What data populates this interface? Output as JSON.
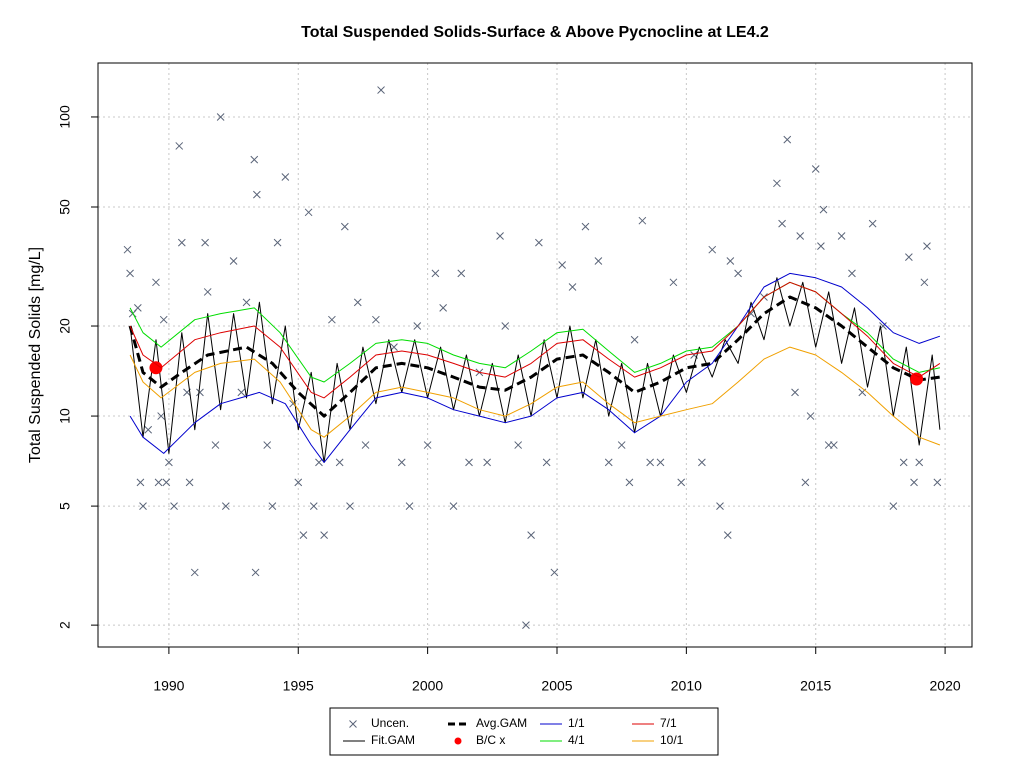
{
  "chart_data": {
    "type": "line",
    "title": "Total Suspended Solids-Surface & Above Pycnocline at LE4.2",
    "y_label": "Total Suspended Solids [mg/L]",
    "log_y": true,
    "grid": true,
    "xlim": [
      1987.26,
      2021.04
    ],
    "ylim": [
      1.69,
      151.5
    ],
    "xticks": [
      1990,
      1995,
      2000,
      2005,
      2010,
      2015,
      2020
    ],
    "yticks": [
      2,
      5,
      10,
      20,
      50,
      100
    ],
    "series": [
      {
        "name": "Uncen.",
        "color": "#5a6478",
        "style": "points",
        "x": [
          1988.4,
          1988.5,
          1988.6,
          1988.8,
          1988.9,
          1989.0,
          1989.2,
          1989.5,
          1989.6,
          1989.7,
          1989.8,
          1989.9,
          1990.0,
          1990.2,
          1990.4,
          1990.5,
          1990.7,
          1990.8,
          1991.0,
          1991.2,
          1991.4,
          1991.5,
          1991.8,
          1992.0,
          1992.2,
          1992.5,
          1992.8,
          1993.0,
          1993.3,
          1993.4,
          1993.35,
          1993.8,
          1994.0,
          1994.2,
          1994.5,
          1994.8,
          1995.0,
          1995.2,
          1995.4,
          1995.6,
          1995.8,
          1996.0,
          1996.3,
          1996.6,
          1996.8,
          1997.0,
          1997.3,
          1997.6,
          1998.0,
          1998.2,
          1998.7,
          1999.0,
          1999.3,
          1999.6,
          2000.0,
          2000.3,
          2000.6,
          2001.0,
          2001.3,
          2001.6,
          2002.0,
          2002.3,
          2002.8,
          2003.0,
          2003.5,
          2003.8,
          2004.0,
          2004.3,
          2004.6,
          2004.9,
          2005.2,
          2005.6,
          2006.1,
          2006.6,
          2007.0,
          2007.5,
          2007.8,
          2008.0,
          2008.3,
          2008.6,
          2009.0,
          2009.5,
          2009.8,
          2010.3,
          2010.6,
          2011.0,
          2011.3,
          2011.6,
          2011.7,
          2012.0,
          2012.5,
          2013.0,
          2013.5,
          2013.7,
          2013.9,
          2014.2,
          2014.4,
          2014.6,
          2014.8,
          2015.0,
          2015.2,
          2015.3,
          2015.5,
          2015.7,
          2016.0,
          2016.4,
          2016.8,
          2017.2,
          2017.6,
          2018.0,
          2018.4,
          2018.6,
          2018.8,
          2019.0,
          2019.2,
          2019.3,
          2019.7
        ],
        "values": [
          36,
          30,
          22,
          23,
          6,
          5,
          9,
          28,
          6,
          10,
          21,
          6,
          7,
          5,
          80,
          38,
          12,
          6,
          3,
          12,
          38,
          26,
          8,
          100,
          5,
          33,
          12,
          24,
          72,
          55,
          3,
          8,
          5,
          38,
          63,
          11,
          6,
          4,
          48,
          5,
          7,
          4,
          21,
          7,
          43,
          5,
          24,
          8,
          21,
          123,
          17,
          7,
          5,
          20,
          8,
          30,
          23,
          5,
          30,
          7,
          14,
          7,
          40,
          20,
          8,
          2,
          4,
          38,
          7,
          3,
          32,
          27,
          43,
          33,
          7,
          8,
          6,
          18,
          45,
          7,
          7,
          28,
          6,
          16,
          7,
          36,
          5,
          4,
          33,
          30,
          22,
          25,
          60,
          44,
          84,
          12,
          40,
          6,
          10,
          67,
          37,
          49,
          8,
          8,
          40,
          30,
          12,
          44,
          20,
          5,
          7,
          34,
          6,
          7,
          28,
          37,
          6
        ]
      },
      {
        "name": "Fit.GAM",
        "color": "#000000",
        "style": "line",
        "width": 1,
        "x": [
          1988.5,
          1989.0,
          1989.5,
          1990.0,
          1990.5,
          1991.0,
          1991.5,
          1992.0,
          1992.5,
          1993.0,
          1993.5,
          1994.0,
          1994.5,
          1995.0,
          1995.5,
          1996.0,
          1996.5,
          1997.0,
          1997.5,
          1998.0,
          1998.5,
          1999.0,
          1999.5,
          2000.0,
          2000.5,
          2001.0,
          2001.5,
          2002.0,
          2002.5,
          2003.0,
          2003.5,
          2004.0,
          2004.5,
          2005.0,
          2005.5,
          2006.0,
          2006.5,
          2007.0,
          2007.5,
          2008.0,
          2008.5,
          2009.0,
          2009.5,
          2010.0,
          2010.5,
          2011.0,
          2011.5,
          2012.0,
          2012.5,
          2013.0,
          2013.5,
          2014.0,
          2014.5,
          2015.0,
          2015.5,
          2016.0,
          2016.5,
          2017.0,
          2017.5,
          2018.0,
          2018.5,
          2019.0,
          2019.5,
          2019.8
        ],
        "values": [
          20,
          8.5,
          18,
          7.5,
          19,
          9,
          22,
          10.5,
          22,
          11.5,
          24,
          11,
          20,
          9,
          14,
          7,
          15,
          9,
          17,
          11,
          18,
          12,
          18,
          11.5,
          17,
          10.5,
          16,
          10,
          15,
          9.5,
          16,
          10,
          18,
          11.5,
          20,
          11.5,
          18,
          10,
          15,
          8.8,
          15,
          10,
          16,
          12,
          17,
          13.5,
          18,
          15,
          24,
          18,
          29,
          20,
          28,
          17,
          26,
          15,
          23,
          12.5,
          20,
          10,
          17,
          8,
          16,
          9
        ]
      },
      {
        "name": "Avg.GAM",
        "color": "#000000",
        "style": "line",
        "width": 3,
        "dashed": true,
        "x": [
          1988.5,
          1989,
          1989.7,
          1990.5,
          1991.5,
          1993,
          1994,
          1995,
          1996,
          1997,
          1998,
          1999,
          2000,
          2001,
          2002,
          2003,
          2004,
          2005,
          2006,
          2007,
          2008,
          2009,
          2010,
          2011,
          2012,
          2013,
          2014,
          2015,
          2016,
          2017,
          2018,
          2019,
          2019.8
        ],
        "values": [
          20,
          14,
          12.5,
          14,
          16,
          17,
          15,
          12,
          10,
          12,
          14.5,
          15,
          14.5,
          13.5,
          12.5,
          12.2,
          13.5,
          15.5,
          16,
          14,
          12,
          13,
          14.5,
          15,
          18,
          22,
          25,
          23,
          20,
          17,
          14.5,
          13.2,
          13.5
        ]
      },
      {
        "name": "B/C x",
        "color": "#ff0000",
        "style": "dots",
        "x": [
          1989.5,
          2018.9
        ],
        "values": [
          14.5,
          13.3
        ]
      },
      {
        "name": "1/1",
        "color": "#0000cd",
        "style": "line",
        "width": 1,
        "x": [
          1988.5,
          1989,
          1989.8,
          1991,
          1992,
          1993.5,
          1994.5,
          1995.5,
          1996,
          1997,
          1998,
          1999,
          2000,
          2001,
          2002,
          2003,
          2004,
          2005,
          2006,
          2007,
          2008,
          2009,
          2010,
          2011,
          2012,
          2013,
          2014,
          2015,
          2016,
          2017,
          2018,
          2019,
          2019.8
        ],
        "values": [
          10,
          8.5,
          7.5,
          9.5,
          11,
          12,
          11,
          8,
          7,
          9,
          11.5,
          12,
          11.5,
          10.5,
          10,
          9.5,
          10,
          11.5,
          12,
          10.5,
          8.8,
          10,
          13,
          15,
          20,
          27,
          30,
          29,
          27,
          23,
          19,
          17.5,
          18.5
        ]
      },
      {
        "name": "4/1",
        "color": "#00dd00",
        "style": "line",
        "width": 1,
        "x": [
          1988.5,
          1989,
          1989.7,
          1991,
          1992,
          1993.3,
          1994.3,
          1995.5,
          1996,
          1997,
          1998,
          1999,
          2000,
          2001,
          2002,
          2003,
          2004,
          2005,
          2006,
          2007,
          2008,
          2009,
          2010,
          2011,
          2012,
          2013,
          2014,
          2015,
          2016,
          2017,
          2018,
          2019,
          2019.8
        ],
        "values": [
          23,
          19,
          17,
          21,
          22,
          23,
          19,
          13.5,
          13,
          15,
          17.5,
          18,
          17.5,
          16,
          15,
          14.5,
          16.5,
          19,
          19.5,
          16.5,
          14,
          15,
          16.5,
          17,
          20,
          25,
          28,
          26,
          22,
          19,
          15.5,
          14,
          14.5
        ]
      },
      {
        "name": "7/1",
        "color": "#dd0000",
        "style": "line",
        "width": 1,
        "x": [
          1988.5,
          1989,
          1989.7,
          1991,
          1992,
          1993.3,
          1994.3,
          1995.5,
          1996,
          1997,
          1998,
          1999,
          2000,
          2001,
          2002,
          2003,
          2004,
          2005,
          2006,
          2007,
          2008,
          2009,
          2010,
          2011,
          2012,
          2013,
          2014,
          2015,
          2016,
          2017,
          2018,
          2019,
          2019.8
        ],
        "values": [
          20,
          16,
          14.5,
          18,
          19,
          20,
          17,
          12,
          11.5,
          13.5,
          16,
          16.5,
          16,
          15,
          14,
          13.5,
          15,
          17.5,
          18,
          15.5,
          13.5,
          14.5,
          16,
          16.5,
          20,
          25,
          28,
          26,
          22,
          18.5,
          15,
          13.5,
          15
        ]
      },
      {
        "name": "10/1",
        "color": "#f0a000",
        "style": "line",
        "width": 1,
        "x": [
          1988.5,
          1989,
          1989.7,
          1991,
          1992,
          1993.3,
          1994.3,
          1995.5,
          1996,
          1997,
          1998,
          1999,
          2000,
          2001,
          2002,
          2003,
          2004,
          2005,
          2006,
          2007,
          2008,
          2009,
          2010,
          2011,
          2012,
          2013,
          2014,
          2015,
          2016,
          2017,
          2018,
          2019,
          2019.8
        ],
        "values": [
          16,
          13,
          11.5,
          14,
          15,
          15.5,
          13,
          9,
          8.5,
          10,
          12,
          12.5,
          12,
          11.5,
          10.5,
          10,
          11,
          12.5,
          13,
          11,
          9.5,
          10,
          10.5,
          11,
          13,
          15.5,
          17,
          16,
          14,
          12,
          10,
          8.5,
          8
        ]
      }
    ]
  }
}
